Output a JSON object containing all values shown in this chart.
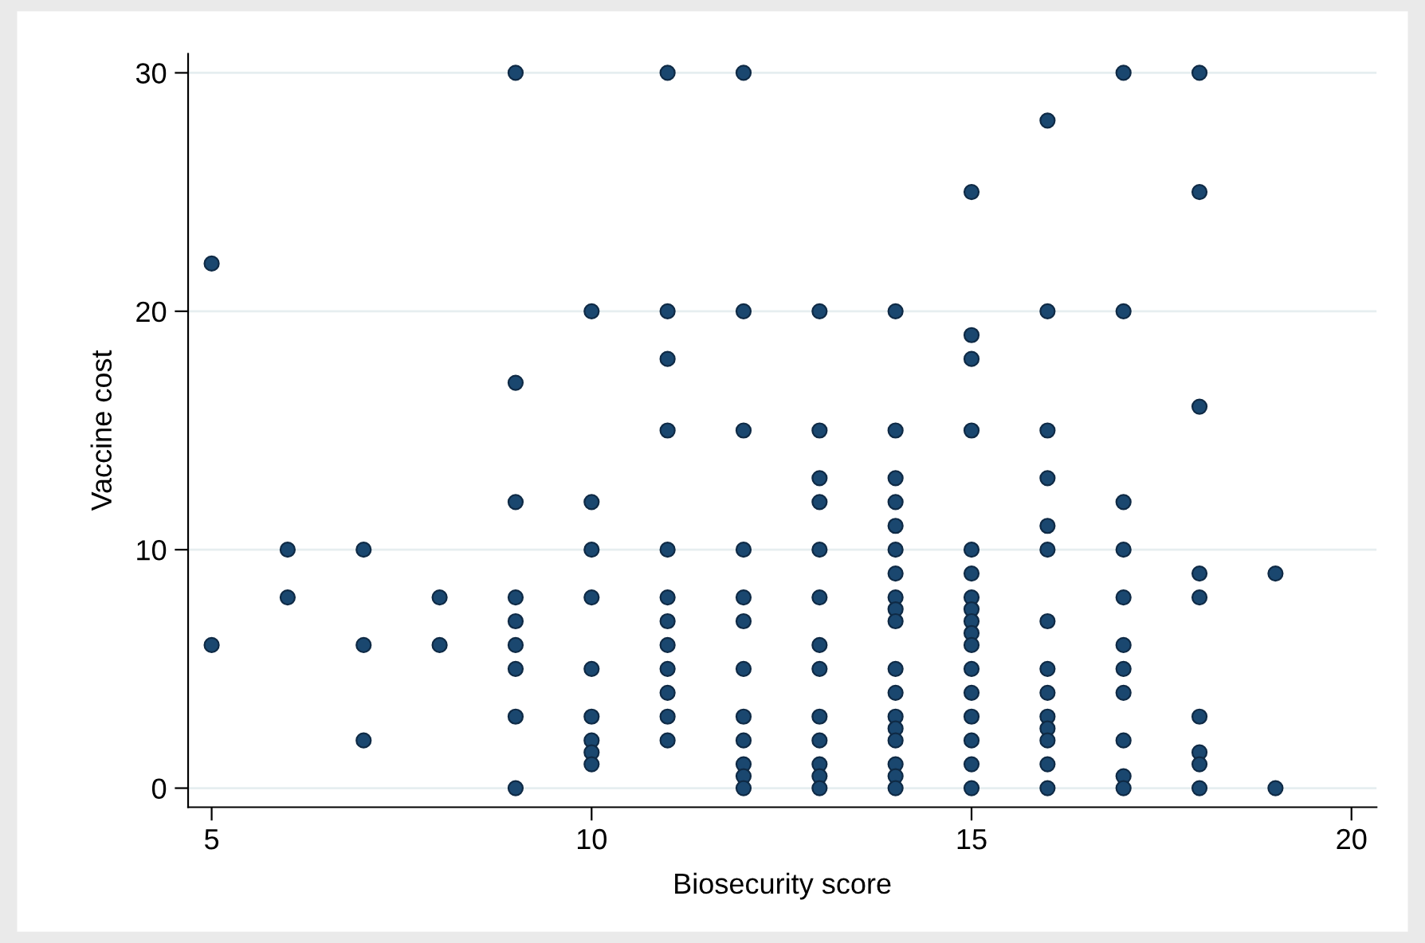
{
  "chart_data": {
    "type": "scatter",
    "xlabel": "Biosecurity score",
    "ylabel": "Vaccine cost",
    "xlim": [
      4.69,
      20.33
    ],
    "ylim": [
      -0.8,
      30.8
    ],
    "xticks": [
      5,
      10,
      15,
      20
    ],
    "yticks": [
      0,
      10,
      20,
      30
    ],
    "grid": "y",
    "marker": "circle",
    "series": [
      {
        "color": "#1a476f",
        "x": [
          5,
          5,
          6,
          6,
          7,
          7,
          7,
          8,
          8,
          9,
          9,
          9,
          9,
          9,
          9,
          9,
          9,
          9,
          10,
          10,
          10,
          10,
          10,
          10,
          10,
          10,
          10,
          11,
          11,
          11,
          11,
          11,
          11,
          11,
          11,
          11,
          11,
          11,
          11,
          12,
          12,
          12,
          12,
          12,
          12,
          12,
          12,
          12,
          12,
          12,
          12,
          13,
          13,
          13,
          13,
          13,
          13,
          13,
          13,
          13,
          13,
          13,
          13,
          13,
          14,
          14,
          14,
          14,
          14,
          14,
          14,
          14,
          14,
          14,
          14,
          14,
          14,
          14,
          14,
          14,
          14,
          14,
          15,
          15,
          15,
          15,
          15,
          15,
          15,
          15,
          15,
          15,
          15,
          15,
          15,
          15,
          15,
          15,
          15,
          16,
          16,
          16,
          16,
          16,
          16,
          16,
          16,
          16,
          16,
          16,
          16,
          16,
          16,
          17,
          17,
          17,
          17,
          17,
          17,
          17,
          17,
          17,
          17,
          17,
          18,
          18,
          18,
          18,
          18,
          18,
          18,
          18,
          18,
          19,
          19
        ],
        "values": [
          22,
          6,
          10,
          8,
          10,
          6,
          2,
          8,
          6,
          30,
          17,
          12,
          8,
          7,
          6,
          5,
          3,
          0,
          20,
          12,
          10,
          8,
          5,
          3,
          2,
          1.5,
          1,
          30,
          20,
          18,
          15,
          10,
          8,
          7,
          6,
          5,
          4,
          3,
          2,
          30,
          20,
          15,
          10,
          8,
          7,
          5,
          3,
          2,
          1,
          0.5,
          0,
          20,
          15,
          13,
          12,
          10,
          8,
          6,
          5,
          3,
          2,
          1,
          0.5,
          0,
          20,
          15,
          13,
          12,
          11,
          10,
          9,
          8,
          7.5,
          7,
          5,
          4,
          3,
          2.5,
          2,
          1,
          0.5,
          0,
          25,
          19,
          18,
          15,
          10,
          9,
          8,
          7.5,
          7,
          6.5,
          6,
          5,
          4,
          3,
          2,
          1,
          0,
          28,
          20,
          15,
          13,
          11,
          10,
          7,
          5,
          4,
          3,
          2.5,
          2,
          1,
          0,
          30,
          20,
          12,
          10,
          8,
          6,
          5,
          4,
          2,
          0.5,
          0,
          30,
          25,
          16,
          9,
          8,
          3,
          1.5,
          1,
          0,
          9,
          0
        ]
      }
    ]
  }
}
